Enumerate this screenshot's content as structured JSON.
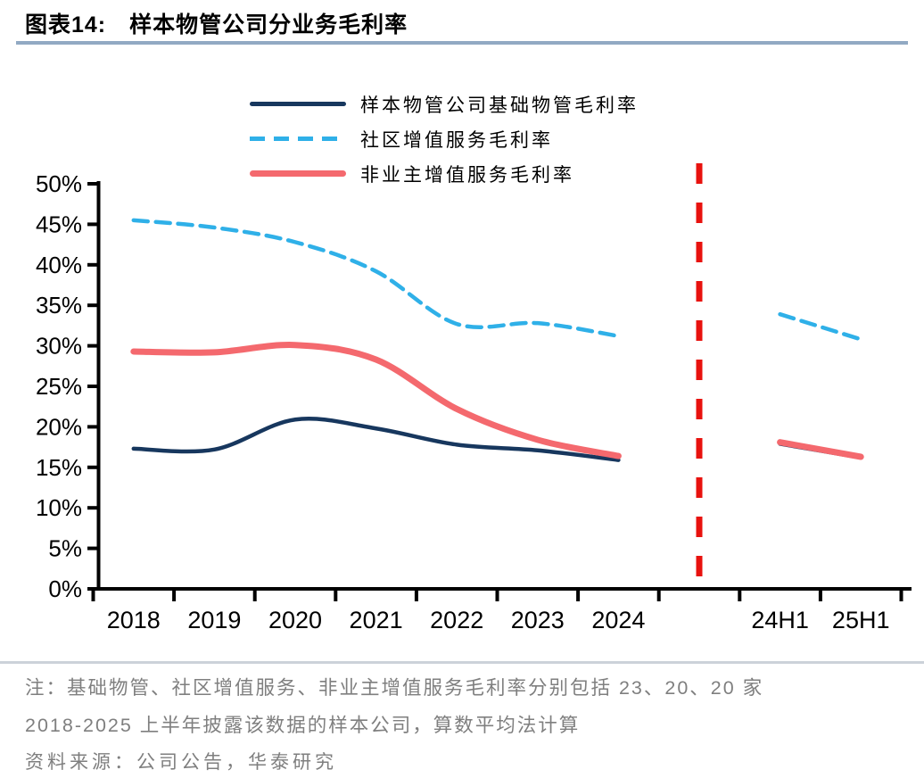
{
  "header": {
    "title_prefix": "图表14:",
    "title": "样本物管公司分业务毛利率"
  },
  "colors": {
    "title_rule": "#91a9c3",
    "note_rule": "#ccd2d9",
    "note_text": "#7f7f7f",
    "axis": "#000000",
    "divider": "#e8120e"
  },
  "chart_data": {
    "type": "line",
    "title": "样本物管公司分业务毛利率",
    "categories": [
      "2018",
      "2019",
      "2020",
      "2021",
      "2022",
      "2023",
      "2024"
    ],
    "h1_categories": [
      "24H1",
      "25H1"
    ],
    "y_tick_labels": [
      "0%",
      "5%",
      "10%",
      "15%",
      "20%",
      "25%",
      "30%",
      "35%",
      "40%",
      "45%",
      "50%"
    ],
    "ylim": [
      0,
      50
    ],
    "y_tick_step": 5,
    "grid": false,
    "legend_position": "top-center",
    "divider": {
      "style": "dashed-vertical",
      "color": "#e8120e",
      "between": [
        "2024",
        "24H1"
      ]
    },
    "series": [
      {
        "id": "base-pm",
        "name": "样本物管公司基础物管毛利率",
        "color": "#17375e",
        "line_style": "solid",
        "values": [
          17.3,
          17.2,
          20.9,
          19.8,
          17.8,
          17.1,
          15.9
        ],
        "h1_values": [
          17.9,
          16.2
        ]
      },
      {
        "id": "community-vas",
        "name": "社区增值服务毛利率",
        "color": "#2fb0e8",
        "line_style": "dashed",
        "values": [
          45.5,
          44.6,
          42.8,
          39.2,
          32.7,
          32.8,
          31.2
        ],
        "h1_values": [
          33.9,
          30.8
        ]
      },
      {
        "id": "non-owner-vas",
        "name": "非业主增值服务毛利率",
        "color": "#f4696e",
        "line_style": "solid-thick",
        "values": [
          29.3,
          29.2,
          30.1,
          28.3,
          22.2,
          18.4,
          16.4
        ],
        "h1_values": [
          18.1,
          16.3
        ]
      }
    ]
  },
  "notes": {
    "line1": "注：基础物管、社区增值服务、非业主增值服务毛利率分别包括 23、20、20 家",
    "line2": "2018-2025 上半年披露该数据的样本公司，算数平均法计算",
    "source": "资料来源：公司公告，华泰研究"
  }
}
